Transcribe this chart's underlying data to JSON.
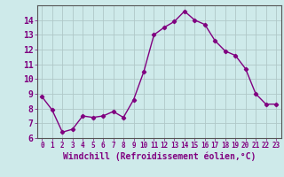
{
  "x": [
    0,
    1,
    2,
    3,
    4,
    5,
    6,
    7,
    8,
    9,
    10,
    11,
    12,
    13,
    14,
    15,
    16,
    17,
    18,
    19,
    20,
    21,
    22,
    23
  ],
  "y": [
    8.8,
    7.9,
    6.4,
    6.6,
    7.5,
    7.4,
    7.5,
    7.8,
    7.4,
    8.6,
    10.5,
    13.0,
    13.5,
    13.9,
    14.6,
    14.0,
    13.7,
    12.6,
    11.9,
    11.6,
    10.7,
    9.0,
    8.3,
    8.3
  ],
  "line_color": "#800080",
  "marker": "D",
  "marker_size": 2.2,
  "xlabel": "Windchill (Refroidissement éolien,°C)",
  "ylim": [
    6,
    15
  ],
  "xlim": [
    -0.5,
    23.5
  ],
  "yticks": [
    6,
    7,
    8,
    9,
    10,
    11,
    12,
    13,
    14
  ],
  "xticks": [
    0,
    1,
    2,
    3,
    4,
    5,
    6,
    7,
    8,
    9,
    10,
    11,
    12,
    13,
    14,
    15,
    16,
    17,
    18,
    19,
    20,
    21,
    22,
    23
  ],
  "bg_color": "#ceeaea",
  "grid_color": "#b0c8c8",
  "label_color": "#800080",
  "tick_color": "#800080",
  "xlabel_fontsize": 7.0,
  "tick_fontsize_x": 5.5,
  "tick_fontsize_y": 7.0,
  "linewidth": 1.0
}
